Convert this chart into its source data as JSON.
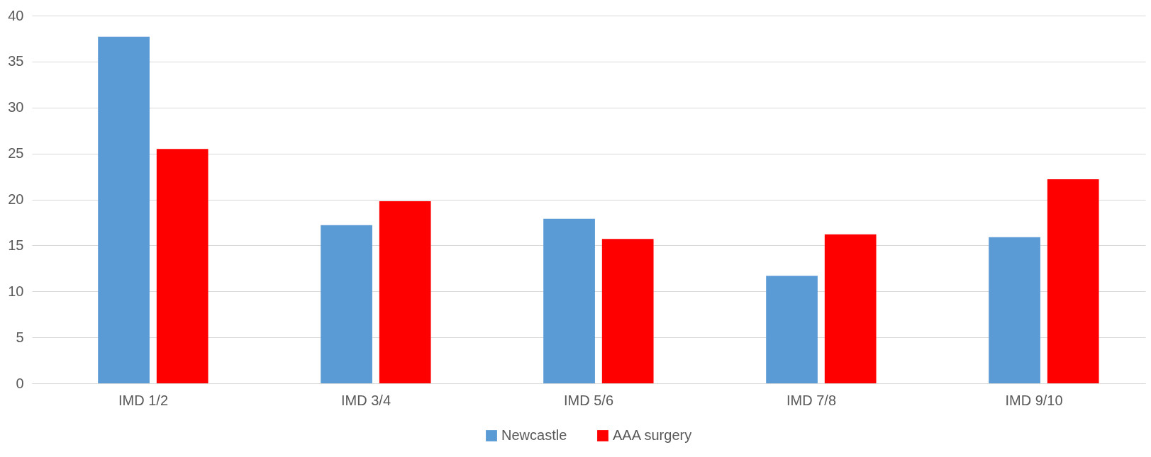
{
  "chart_data": {
    "type": "bar",
    "categories": [
      "IMD 1/2",
      "IMD 3/4",
      "IMD 5/6",
      "IMD 7/8",
      "IMD 9/10"
    ],
    "series": [
      {
        "name": "Newcastle",
        "color": "#5b9bd5",
        "values": [
          37.7,
          17.2,
          17.9,
          11.7,
          15.9
        ]
      },
      {
        "name": "AAA surgery",
        "color": "#ff0000",
        "values": [
          25.5,
          19.8,
          15.7,
          16.2,
          22.2
        ]
      }
    ],
    "ylim": [
      0,
      40
    ],
    "yticks": [
      0,
      5,
      10,
      15,
      20,
      25,
      30,
      35,
      40
    ],
    "grid": "y",
    "legend": "bottom"
  }
}
